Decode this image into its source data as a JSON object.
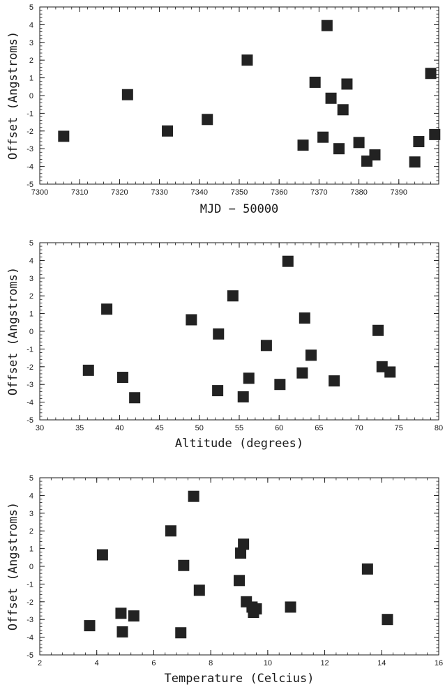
{
  "chart_data": [
    {
      "type": "scatter",
      "xlabel": "MJD − 50000",
      "ylabel": "Offset (Angstroms)",
      "xlim": [
        7300,
        7400
      ],
      "ylim": [
        -5,
        5
      ],
      "xticks": [
        7300,
        7310,
        7320,
        7330,
        7340,
        7350,
        7360,
        7370,
        7380,
        7390
      ],
      "yticks": [
        -5,
        -4,
        -3,
        -2,
        -1,
        0,
        1,
        2,
        3,
        4,
        5
      ],
      "grid": false,
      "marker": "square",
      "color": "#222222",
      "x": [
        7306,
        7322,
        7332,
        7342,
        7352,
        7366,
        7369,
        7371,
        7372,
        7373,
        7375,
        7376,
        7377,
        7380,
        7382,
        7384,
        7394,
        7395,
        7398,
        7399
      ],
      "y": [
        -2.3,
        0.05,
        -2.0,
        -1.35,
        2.0,
        -2.8,
        0.75,
        -2.35,
        3.95,
        -0.15,
        -3.0,
        -0.8,
        0.65,
        -2.65,
        -3.7,
        -3.35,
        -3.75,
        -2.6,
        1.25,
        -2.2
      ]
    },
    {
      "type": "scatter",
      "xlabel": "Altitude (degrees)",
      "ylabel": "Offset (Angstroms)",
      "xlim": [
        30,
        80
      ],
      "ylim": [
        -5,
        5
      ],
      "xticks": [
        30,
        35,
        40,
        45,
        50,
        55,
        60,
        65,
        70,
        75,
        80
      ],
      "yticks": [
        -5,
        -4,
        -3,
        -2,
        -1,
        0,
        1,
        2,
        3,
        4,
        5
      ],
      "grid": false,
      "marker": "square",
      "color": "#222222",
      "x": [
        36.1,
        38.4,
        40.4,
        41.9,
        49.0,
        52.3,
        52.4,
        54.2,
        55.5,
        56.2,
        58.4,
        60.1,
        61.1,
        62.9,
        63.2,
        64.0,
        66.9,
        72.4,
        72.9,
        73.9
      ],
      "y": [
        -2.2,
        1.25,
        -2.6,
        -3.75,
        0.65,
        -3.35,
        -0.15,
        2.0,
        -3.7,
        -2.65,
        -0.8,
        -3.0,
        3.95,
        -2.35,
        0.75,
        -1.35,
        -2.8,
        0.05,
        -2.0,
        -2.3
      ]
    },
    {
      "type": "scatter",
      "xlabel": "Temperature (Celcius)",
      "ylabel": "Offset (Angstroms)",
      "xlim": [
        2,
        16
      ],
      "ylim": [
        -5,
        5
      ],
      "xticks": [
        2,
        4,
        6,
        8,
        10,
        12,
        14,
        16
      ],
      "yticks": [
        -5,
        -4,
        -3,
        -2,
        -1,
        0,
        1,
        2,
        3,
        4,
        5
      ],
      "grid": false,
      "marker": "square",
      "color": "#222222",
      "x": [
        3.75,
        4.2,
        4.85,
        4.9,
        5.3,
        6.6,
        6.95,
        7.05,
        7.4,
        7.6,
        9.0,
        9.05,
        9.15,
        9.25,
        9.45,
        9.5,
        9.6,
        10.8,
        13.5,
        14.2
      ],
      "y": [
        -3.35,
        0.65,
        -2.65,
        -3.7,
        -2.8,
        2.0,
        -3.75,
        0.05,
        3.95,
        -1.35,
        -0.8,
        0.75,
        1.25,
        -2.0,
        -2.3,
        -2.6,
        -2.4,
        -2.3,
        -0.15,
        -3.0
      ]
    }
  ]
}
